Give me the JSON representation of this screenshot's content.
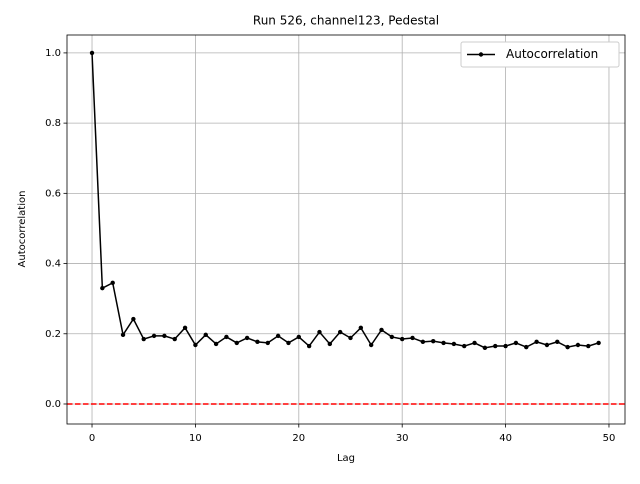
{
  "chart_data": {
    "type": "line",
    "title": "Run 526, channel123, Pedestal",
    "x_label": "Lag",
    "y_label": "Autocorrelation",
    "x": [
      0,
      1,
      2,
      3,
      4,
      5,
      6,
      7,
      8,
      9,
      10,
      11,
      12,
      13,
      14,
      15,
      16,
      17,
      18,
      19,
      20,
      21,
      22,
      23,
      24,
      25,
      26,
      27,
      28,
      29,
      30,
      31,
      32,
      33,
      34,
      35,
      36,
      37,
      38,
      39,
      40,
      41,
      42,
      43,
      44,
      45,
      46,
      47,
      48,
      49
    ],
    "series": [
      {
        "name": "Autocorrelation",
        "color": "#000000",
        "values": [
          1.0,
          0.33,
          0.345,
          0.197,
          0.242,
          0.185,
          0.194,
          0.194,
          0.185,
          0.217,
          0.168,
          0.197,
          0.171,
          0.191,
          0.174,
          0.188,
          0.177,
          0.174,
          0.194,
          0.174,
          0.191,
          0.165,
          0.205,
          0.171,
          0.205,
          0.188,
          0.217,
          0.168,
          0.211,
          0.191,
          0.185,
          0.188,
          0.177,
          0.179,
          0.174,
          0.171,
          0.165,
          0.174,
          0.16,
          0.165,
          0.165,
          0.174,
          0.162,
          0.177,
          0.168,
          0.177,
          0.162,
          0.168,
          0.165,
          0.174
        ]
      }
    ],
    "xlim": [
      -2.42,
      51.55
    ],
    "ylim": [
      -0.057,
      1.051
    ],
    "xticks": [
      0,
      10,
      20,
      30,
      40,
      50
    ],
    "yticks": [
      {
        "value": 0,
        "label": "0.0"
      },
      {
        "value": 0.2,
        "label": "0.2"
      },
      {
        "value": 0.4,
        "label": "0.4"
      },
      {
        "value": 0.6,
        "label": "0.6"
      },
      {
        "value": 0.8,
        "label": "0.8"
      },
      {
        "value": 1,
        "label": "1.0"
      }
    ],
    "grid": true,
    "legend": "upper right",
    "hline": {
      "value": 0,
      "color": "#ff0000"
    }
  }
}
